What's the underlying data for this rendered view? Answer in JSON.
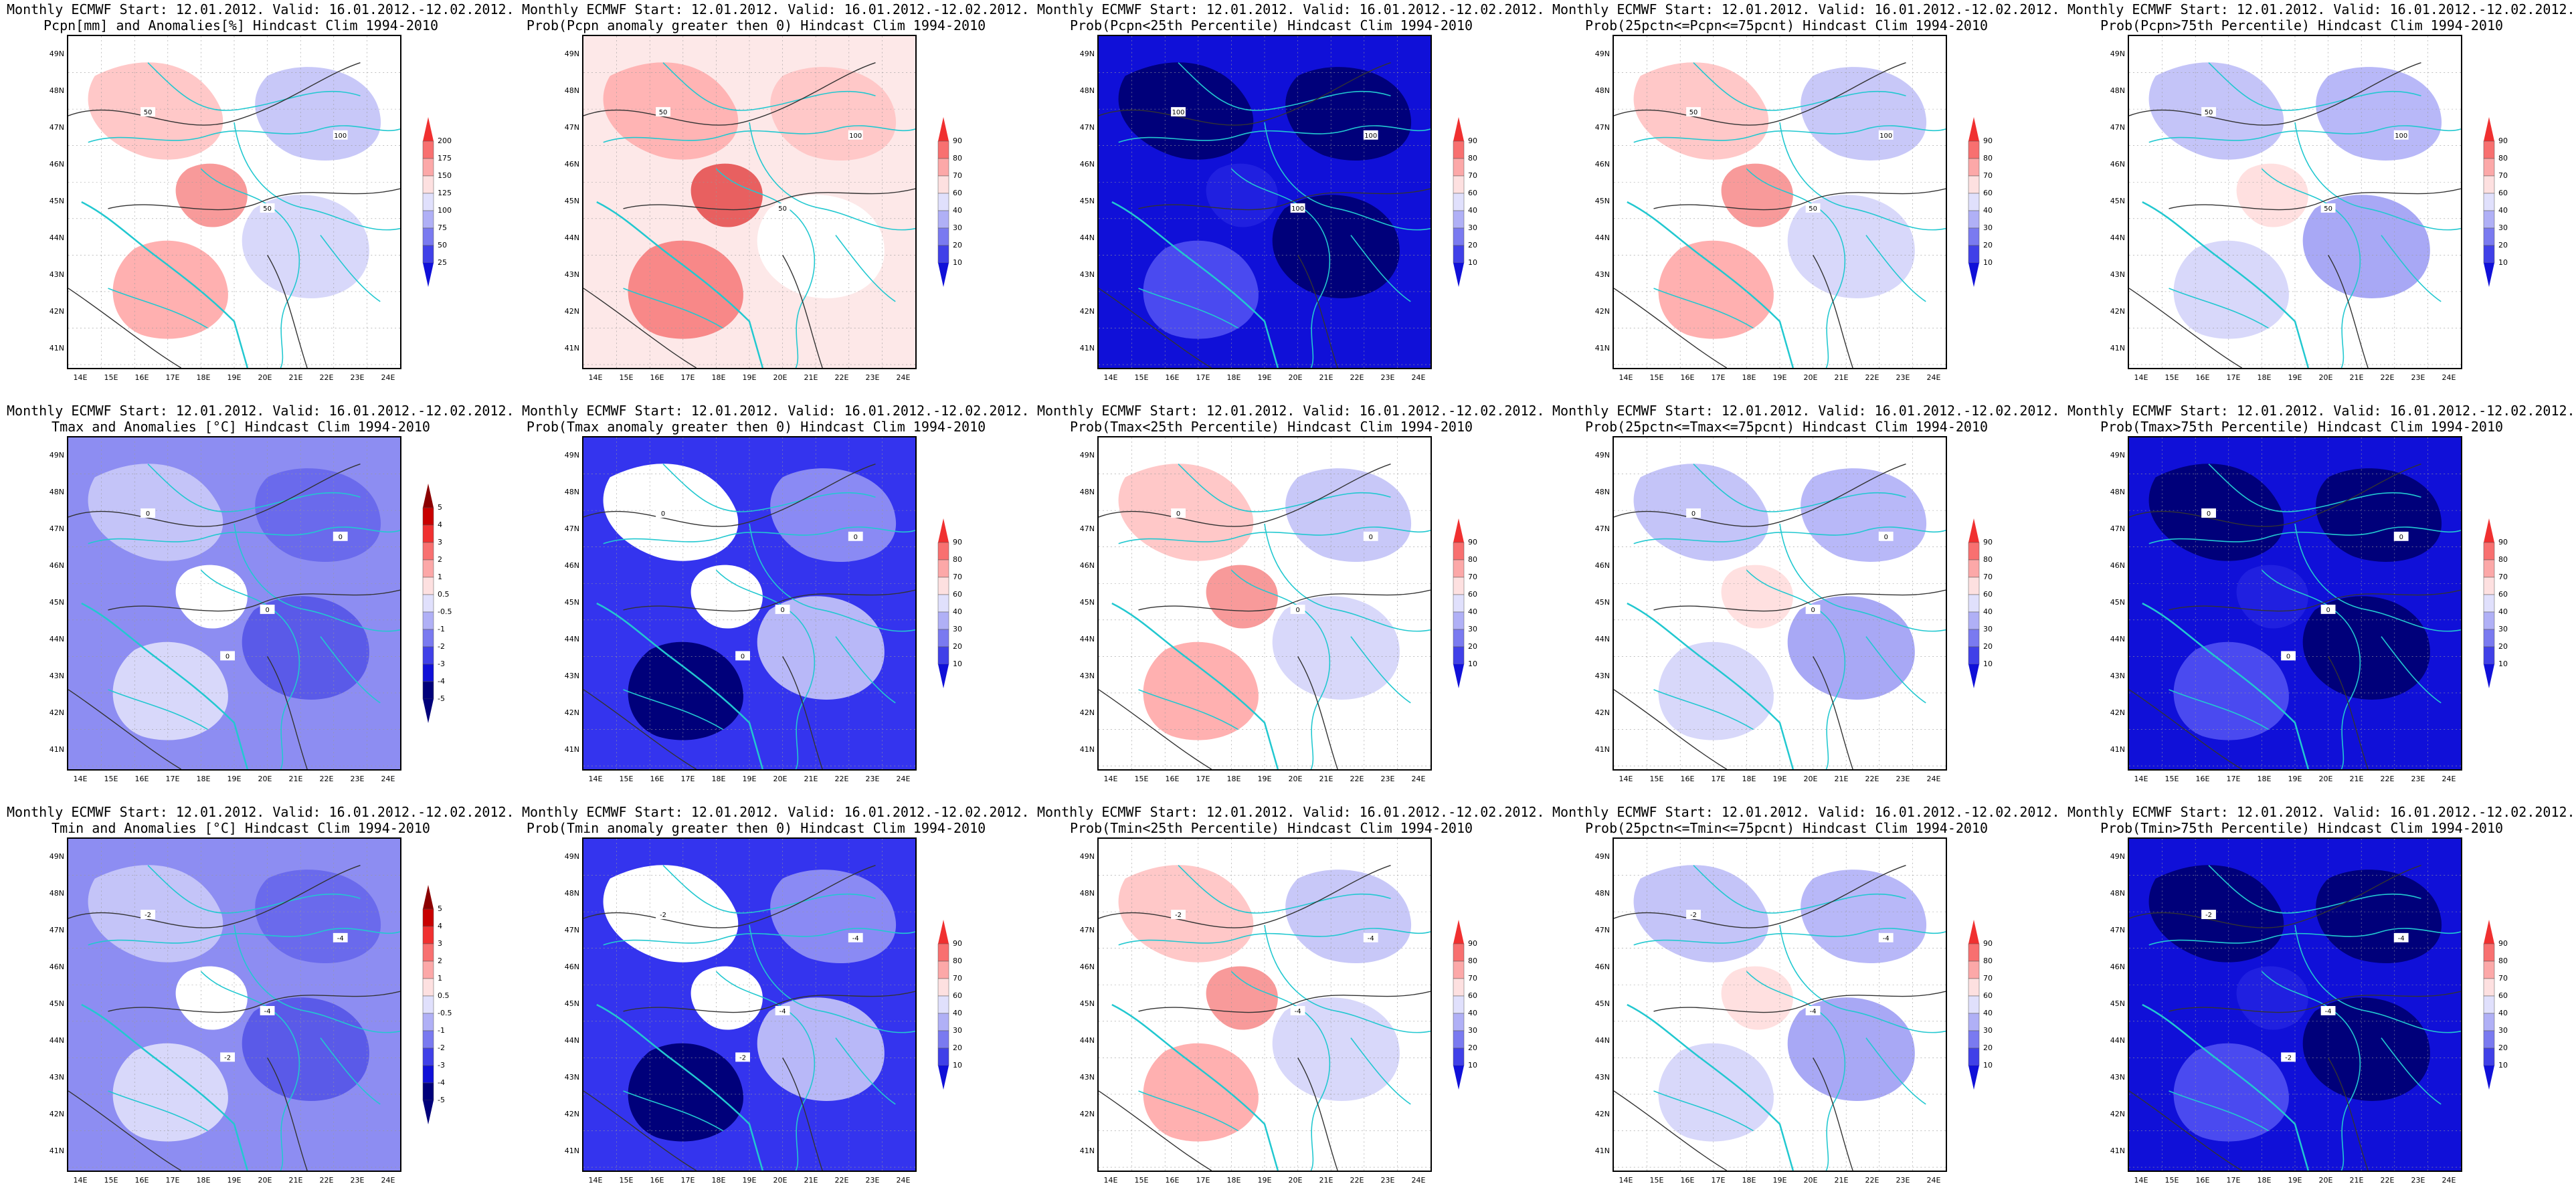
{
  "figure": {
    "panels": [
      {
        "line1": "Monthly ECMWF Start: 12.01.2012. Valid: 16.01.2012.-12.02.2012.",
        "line2": "Pcpn[mm] and Anomalies[%] Hindcast Clim 1994-2010",
        "colorbar": [
          "200",
          "175",
          "150",
          "125",
          "100",
          "75",
          "50",
          "25"
        ],
        "contour_labels": [
          "50",
          "50",
          "100"
        ],
        "theme": "mixed-light"
      },
      {
        "line1": "Monthly ECMWF Start: 12.01.2012. Valid: 16.01.2012.-12.02.2012.",
        "line2": "Prob(Pcpn anomaly greater then 0) Hindcast Clim 1994-2010",
        "colorbar": [
          "90",
          "80",
          "70",
          "60",
          "40",
          "30",
          "20",
          "10"
        ],
        "contour_labels": [
          "50",
          "50",
          "100"
        ],
        "theme": "mixed-red"
      },
      {
        "line1": "Monthly ECMWF Start: 12.01.2012. Valid: 16.01.2012.-12.02.2012.",
        "line2": "Prob(Pcpn<25th Percentile) Hindcast Clim 1994-2010",
        "colorbar": [
          "90",
          "80",
          "70",
          "60",
          "40",
          "30",
          "20",
          "10"
        ],
        "contour_labels": [
          "100",
          "100",
          "100"
        ],
        "theme": "dark-blue"
      },
      {
        "line1": "Monthly ECMWF Start: 12.01.2012. Valid: 16.01.2012.-12.02.2012.",
        "line2": "Prob(25pctn<=Pcpn<=75pcnt) Hindcast Clim 1994-2010",
        "colorbar": [
          "90",
          "80",
          "70",
          "60",
          "40",
          "30",
          "20",
          "10"
        ],
        "contour_labels": [
          "50",
          "50",
          "100"
        ],
        "theme": "mixed-light"
      },
      {
        "line1": "Monthly ECMWF Start: 12.01.2012. Valid: 16.01.2012.-12.02.2012.",
        "line2": "Prob(Pcpn>75th Percentile) Hindcast Clim 1994-2010",
        "colorbar": [
          "90",
          "80",
          "70",
          "60",
          "40",
          "30",
          "20",
          "10"
        ],
        "contour_labels": [
          "50",
          "50",
          "100"
        ],
        "theme": "light-blue"
      },
      {
        "line1": "Monthly ECMWF Start: 12.01.2012. Valid: 16.01.2012.-12.02.2012.",
        "line2": "Tmax and Anomalies [°C] Hindcast Clim 1994-2010",
        "colorbar": [
          "5",
          "4",
          "3",
          "2",
          "1",
          "0.5",
          "-0.5",
          "-1",
          "-2",
          "-3",
          "-4",
          "-5"
        ],
        "contour_labels": [
          "0",
          "0",
          "0",
          "0"
        ],
        "theme": "medium-blue"
      },
      {
        "line1": "Monthly ECMWF Start: 12.01.2012. Valid: 16.01.2012.-12.02.2012.",
        "line2": "Prob(Tmax anomaly greater then 0) Hindcast Clim 1994-2010",
        "colorbar": [
          "90",
          "80",
          "70",
          "60",
          "40",
          "30",
          "20",
          "10"
        ],
        "contour_labels": [
          "0",
          "0",
          "0",
          "0"
        ],
        "theme": "strong-blue"
      },
      {
        "line1": "Monthly ECMWF Start: 12.01.2012. Valid: 16.01.2012.-12.02.2012.",
        "line2": "Prob(Tmax<25th Percentile) Hindcast Clim 1994-2010",
        "colorbar": [
          "90",
          "80",
          "70",
          "60",
          "40",
          "30",
          "20",
          "10"
        ],
        "contour_labels": [
          "0",
          "0",
          "0"
        ],
        "theme": "mixed-light"
      },
      {
        "line1": "Monthly ECMWF Start: 12.01.2012. Valid: 16.01.2012.-12.02.2012.",
        "line2": "Prob(25pctn<=Tmax<=75pcnt) Hindcast Clim 1994-2010",
        "colorbar": [
          "90",
          "80",
          "70",
          "60",
          "40",
          "30",
          "20",
          "10"
        ],
        "contour_labels": [
          "0",
          "0",
          "0"
        ],
        "theme": "light-blue"
      },
      {
        "line1": "Monthly ECMWF Start: 12.01.2012. Valid: 16.01.2012.-12.02.2012.",
        "line2": "Prob(Tmax>75th Percentile) Hindcast Clim 1994-2010",
        "colorbar": [
          "90",
          "80",
          "70",
          "60",
          "40",
          "30",
          "20",
          "10"
        ],
        "contour_labels": [
          "0",
          "0",
          "0",
          "0"
        ],
        "theme": "dark-blue"
      },
      {
        "line1": "Monthly ECMWF Start: 12.01.2012. Valid: 16.01.2012.-12.02.2012.",
        "line2": "Tmin and Anomalies [°C] Hindcast Clim 1994-2010",
        "colorbar": [
          "5",
          "4",
          "3",
          "2",
          "1",
          "0.5",
          "-0.5",
          "-1",
          "-2",
          "-3",
          "-4",
          "-5"
        ],
        "contour_labels": [
          "-2",
          "-4",
          "-4",
          "-2"
        ],
        "theme": "medium-blue"
      },
      {
        "line1": "Monthly ECMWF Start: 12.01.2012. Valid: 16.01.2012.-12.02.2012.",
        "line2": "Prob(Tmin anomaly greater then 0) Hindcast Clim 1994-2010",
        "colorbar": [
          "90",
          "80",
          "70",
          "60",
          "40",
          "30",
          "20",
          "10"
        ],
        "contour_labels": [
          "-2",
          "-4",
          "-4",
          "-2"
        ],
        "theme": "strong-blue"
      },
      {
        "line1": "Monthly ECMWF Start: 12.01.2012. Valid: 16.01.2012.-12.02.2012.",
        "line2": "Prob(Tmin<25th Percentile) Hindcast Clim 1994-2010",
        "colorbar": [
          "90",
          "80",
          "70",
          "60",
          "40",
          "30",
          "20",
          "10"
        ],
        "contour_labels": [
          "-2",
          "-4",
          "-4"
        ],
        "theme": "mixed-light"
      },
      {
        "line1": "Monthly ECMWF Start: 12.01.2012. Valid: 16.01.2012.-12.02.2012.",
        "line2": "Prob(25pctn<=Tmin<=75pcnt) Hindcast Clim 1994-2010",
        "colorbar": [
          "90",
          "80",
          "70",
          "60",
          "40",
          "30",
          "20",
          "10"
        ],
        "contour_labels": [
          "-2",
          "-4",
          "-4"
        ],
        "theme": "light-blue"
      },
      {
        "line1": "Monthly ECMWF Start: 12.01.2012. Valid: 16.01.2012.-12.02.2012.",
        "line2": "Prob(Tmin>75th Percentile) Hindcast Clim 1994-2010",
        "colorbar": [
          "90",
          "80",
          "70",
          "60",
          "40",
          "30",
          "20",
          "10"
        ],
        "contour_labels": [
          "-2",
          "-4",
          "-4",
          "-2"
        ],
        "theme": "dark-blue"
      }
    ],
    "lat_ticks": [
      "49N",
      "48N",
      "47N",
      "46N",
      "45N",
      "44N",
      "43N",
      "42N",
      "41N"
    ],
    "lon_ticks": [
      "14E",
      "15E",
      "16E",
      "17E",
      "18E",
      "19E",
      "20E",
      "21E",
      "22E",
      "23E",
      "24E"
    ],
    "colors": {
      "coast": "#22c8d0",
      "contour": "#333333",
      "dark_red": "#8b0000",
      "dark_blue": "#00007a"
    }
  }
}
